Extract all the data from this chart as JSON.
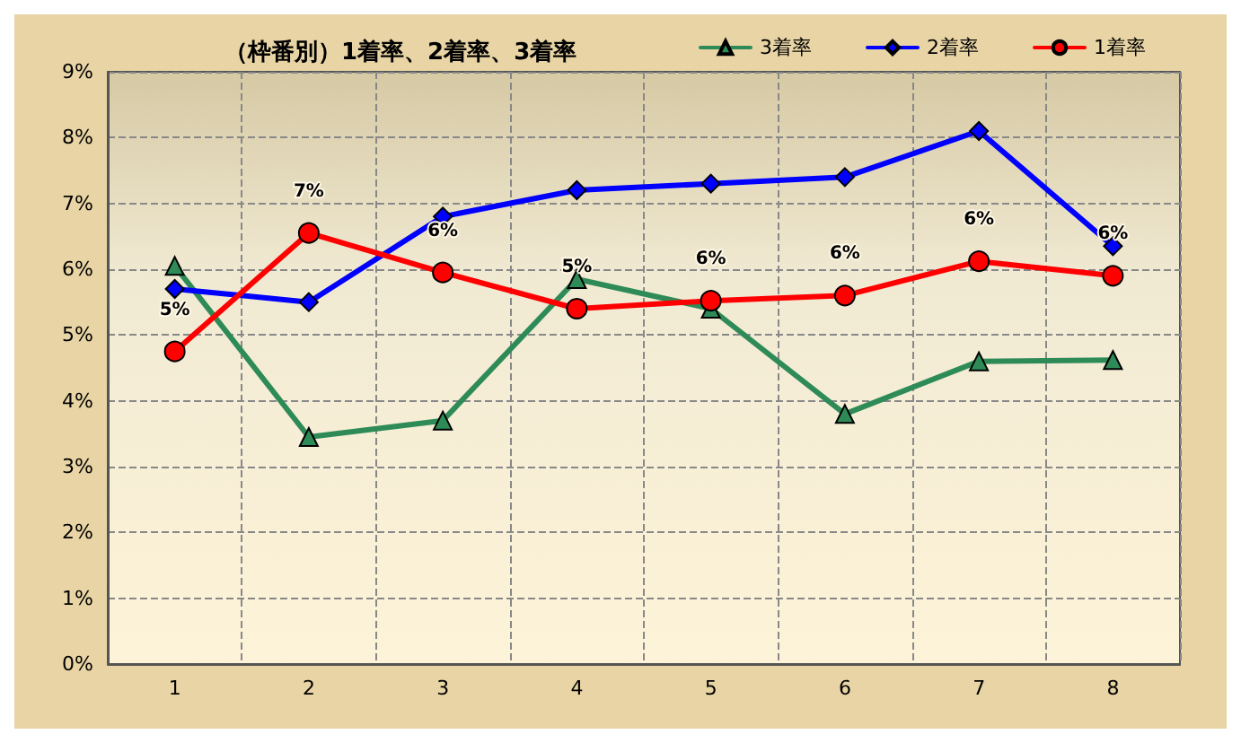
{
  "chart_data": {
    "type": "line",
    "title": "（枠番別）1着率、2着率、3着率",
    "categories": [
      "1",
      "2",
      "3",
      "4",
      "5",
      "6",
      "7",
      "8"
    ],
    "series": [
      {
        "name": "3着率",
        "color": "#2e8b57",
        "marker": "triangle",
        "values": [
          6.05,
          3.45,
          3.7,
          5.85,
          5.4,
          3.8,
          4.6,
          4.62
        ]
      },
      {
        "name": "2着率",
        "color": "#0000ff",
        "marker": "diamond",
        "values": [
          5.7,
          5.5,
          6.8,
          7.2,
          7.3,
          7.4,
          8.1,
          6.35
        ]
      },
      {
        "name": "1着率",
        "color": "#ff0000",
        "marker": "circle",
        "values": [
          4.75,
          6.55,
          5.95,
          5.4,
          5.52,
          5.6,
          6.12,
          5.9
        ],
        "value_labels": [
          "5%",
          "7%",
          "6%",
          "5%",
          "6%",
          "6%",
          "6%",
          "6%"
        ]
      }
    ],
    "ylim": [
      0,
      9
    ],
    "yticks": [
      {
        "value": 0,
        "label": "0%"
      },
      {
        "value": 1,
        "label": "1%"
      },
      {
        "value": 2,
        "label": "2%"
      },
      {
        "value": 3,
        "label": "3%"
      },
      {
        "value": 4,
        "label": "4%"
      },
      {
        "value": 5,
        "label": "5%"
      },
      {
        "value": 6,
        "label": "6%"
      },
      {
        "value": 7,
        "label": "7%"
      },
      {
        "value": 8,
        "label": "8%"
      },
      {
        "value": 9,
        "label": "9%"
      }
    ],
    "grid": true,
    "legend": "top right",
    "line_style": "solid"
  }
}
